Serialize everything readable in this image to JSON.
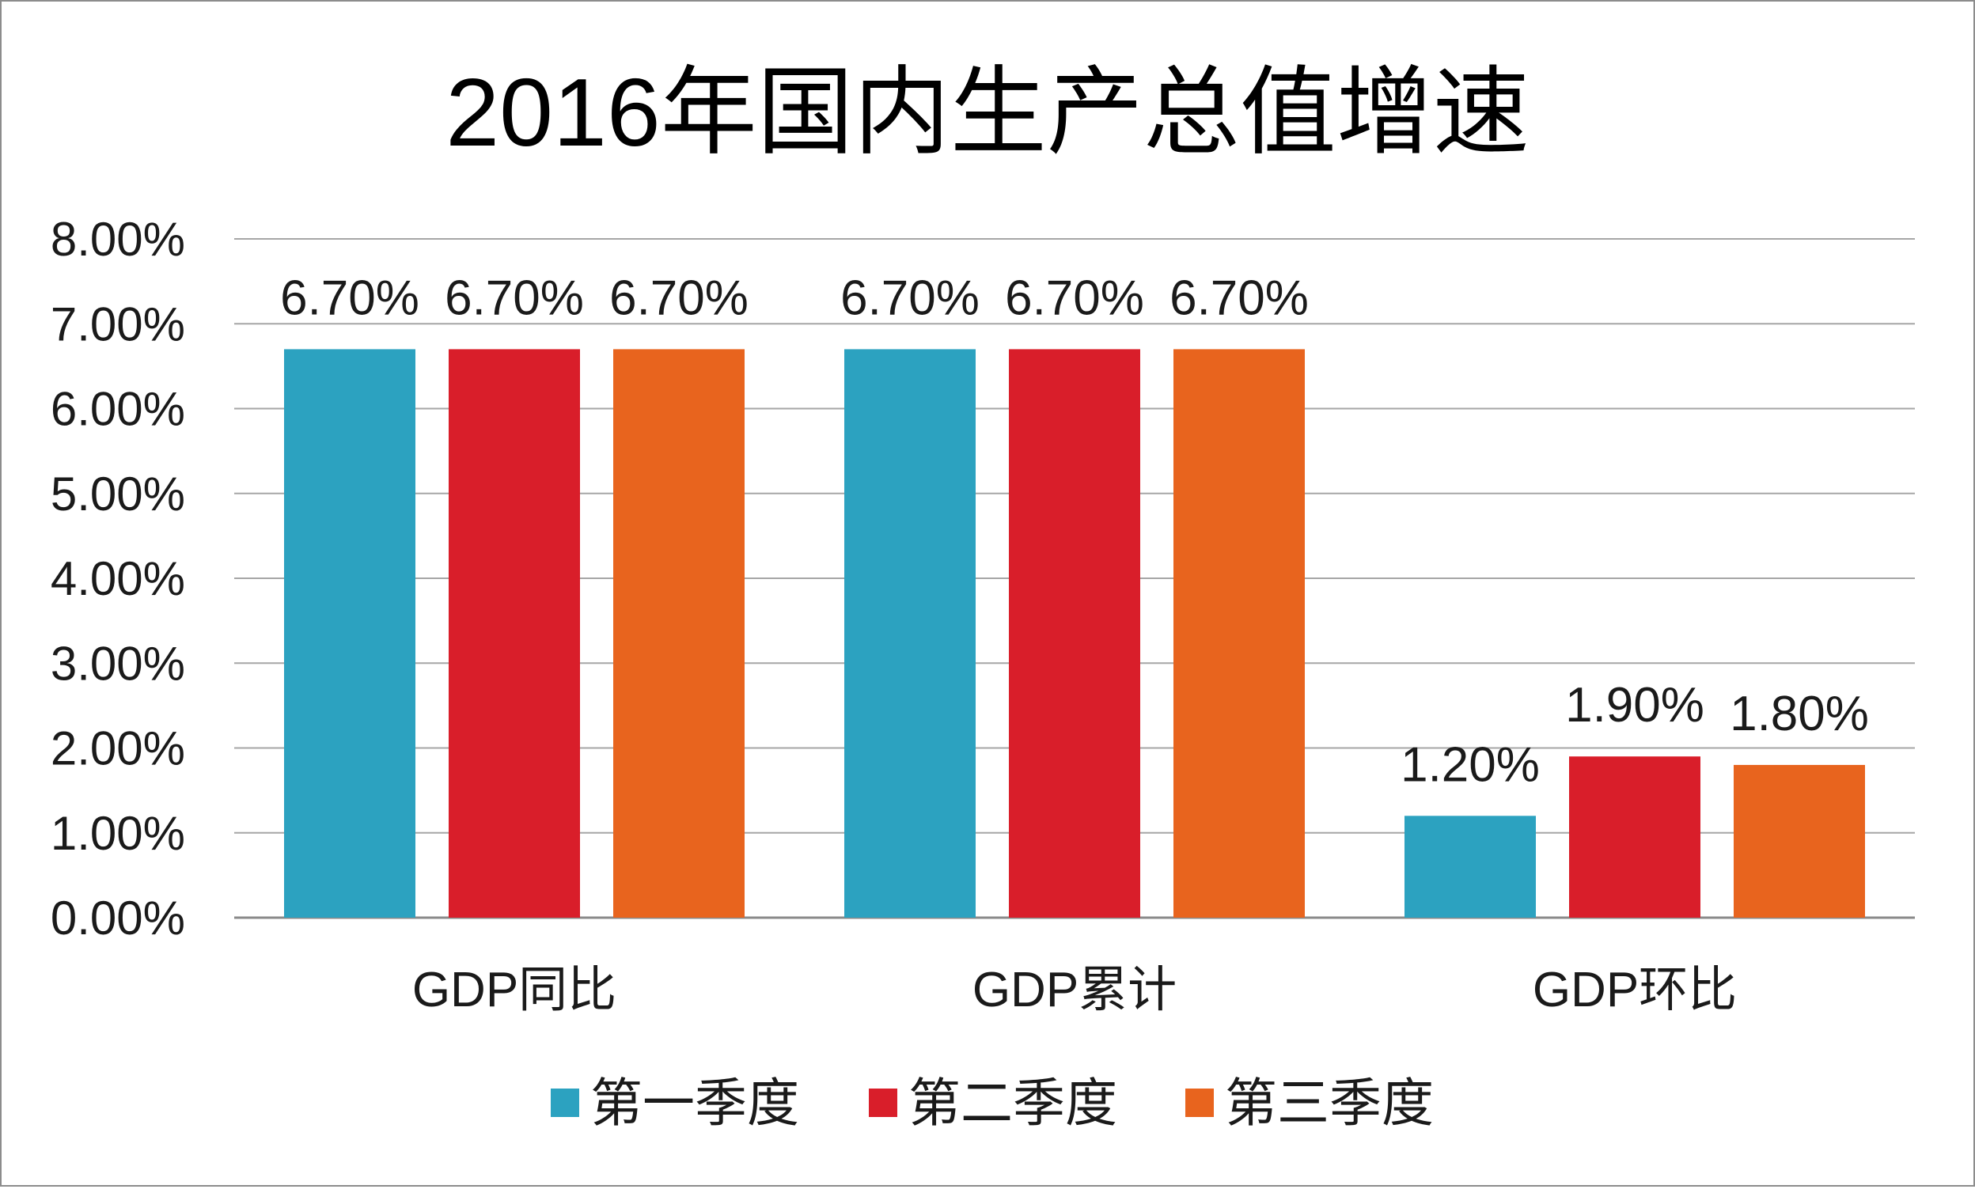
{
  "chart_data": {
    "type": "bar",
    "title": "2016年国内生产总值增速",
    "xlabel": "",
    "ylabel": "",
    "categories": [
      "GDP同比",
      "GDP累计",
      "GDP环比"
    ],
    "series": [
      {
        "name": "第一季度",
        "color": "#2CA2C0",
        "values": [
          6.7,
          6.7,
          1.2
        ],
        "labels": [
          "6.70%",
          "6.70%",
          "1.20%"
        ]
      },
      {
        "name": "第二季度",
        "color": "#D91E2A",
        "values": [
          6.7,
          6.7,
          1.9
        ],
        "labels": [
          "6.70%",
          "6.70%",
          "1.90%"
        ]
      },
      {
        "name": "第三季度",
        "color": "#E8641E",
        "values": [
          6.7,
          6.7,
          1.8
        ],
        "labels": [
          "6.70%",
          "6.70%",
          "1.80%"
        ]
      }
    ],
    "ylim": [
      0,
      8
    ],
    "yticks": [
      0,
      1,
      2,
      3,
      4,
      5,
      6,
      7,
      8
    ],
    "ytick_labels": [
      "0.00%",
      "1.00%",
      "2.00%",
      "3.00%",
      "4.00%",
      "5.00%",
      "6.00%",
      "7.00%",
      "8.00%"
    ],
    "grid": true,
    "legend_position": "bottom"
  }
}
